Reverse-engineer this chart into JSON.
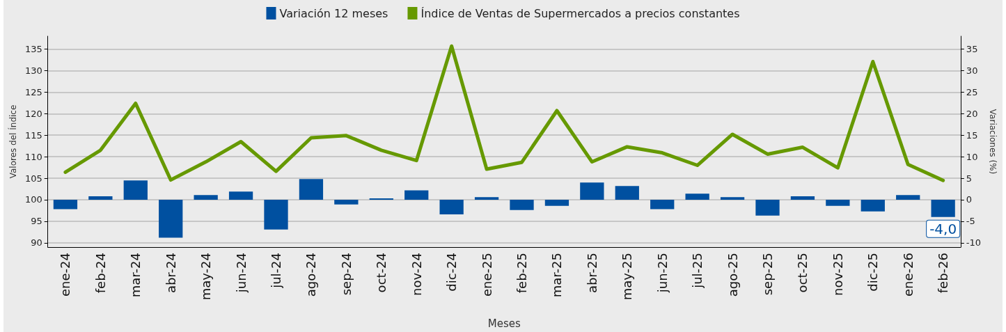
{
  "chart_data": {
    "type": "bar",
    "categories": [
      "ene-24",
      "feb-24",
      "mar-24",
      "abr-24",
      "may-24",
      "jun-24",
      "jul-24",
      "ago-24",
      "sep-24",
      "oct-24",
      "nov-24",
      "dic-24",
      "ene-25",
      "feb-25",
      "mar-25",
      "abr-25",
      "may-25",
      "jun-25",
      "jul-25",
      "ago-25",
      "sep-25",
      "oct-25",
      "nov-25",
      "dic-25",
      "ene-26",
      "feb-26"
    ],
    "series": [
      {
        "name": "Variación 12 meses",
        "axis": "y2",
        "color": "#0050a0",
        "values": [
          -2.2,
          0.8,
          4.5,
          -8.8,
          1.1,
          1.9,
          -6.9,
          4.8,
          -1.1,
          0.3,
          2.2,
          -3.4,
          0.6,
          -2.4,
          -1.4,
          4.0,
          3.2,
          -2.2,
          1.4,
          0.6,
          -3.7,
          0.8,
          -1.4,
          -2.7,
          1.1,
          -4.0
        ],
        "value_labels": [
          null,
          null,
          null,
          null,
          null,
          null,
          null,
          null,
          null,
          null,
          null,
          null,
          null,
          null,
          null,
          null,
          null,
          null,
          null,
          null,
          null,
          null,
          null,
          null,
          null,
          "-4,0"
        ]
      },
      {
        "name": "Índice de Ventas de Supermercados a precios constantes",
        "type": "line",
        "color": "#669900",
        "values": [
          106.4,
          111.5,
          122.4,
          104.6,
          108.8,
          113.5,
          106.6,
          114.4,
          114.9,
          111.5,
          109.1,
          135.7,
          107.1,
          108.7,
          120.7,
          108.8,
          112.3,
          110.9,
          108.0,
          115.2,
          110.6,
          112.2,
          107.4,
          132.1,
          108.2,
          104.5
        ]
      }
    ],
    "xlabel": "Meses",
    "ylabel": "Valores del Índice",
    "y2label": "Variaciones (%)",
    "ylim": [
      89,
      138
    ],
    "yticks": [
      90,
      95,
      100,
      105,
      110,
      115,
      120,
      125,
      130,
      135
    ],
    "y2lim": [
      -11,
      38
    ],
    "y2ticks": [
      -10,
      -5,
      0,
      5,
      10,
      15,
      20,
      25,
      30,
      35
    ],
    "grid": "y",
    "legend": "top",
    "marker": "none",
    "line_style": "solid"
  }
}
